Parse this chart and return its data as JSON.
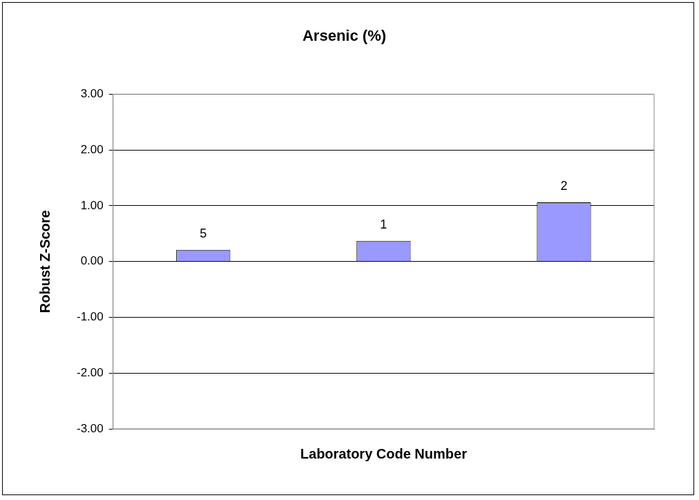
{
  "chart_data": {
    "type": "bar",
    "title": "Arsenic (%)",
    "xlabel": "Laboratory Code Number",
    "ylabel": "Robust Z-Score",
    "categories": [
      "5",
      "1",
      "2"
    ],
    "values": [
      0.21,
      0.37,
      1.06
    ],
    "color": "#9999ff",
    "ylim": [
      -3,
      3
    ],
    "yticks": [
      {
        "value": -3,
        "label": "-3.00"
      },
      {
        "value": -2,
        "label": "-2.00"
      },
      {
        "value": -1,
        "label": "-1.00"
      },
      {
        "value": 0,
        "label": "0.00"
      },
      {
        "value": 1,
        "label": "1.00"
      },
      {
        "value": 2,
        "label": "2.00"
      },
      {
        "value": 3,
        "label": "3.00"
      }
    ],
    "grid": "y"
  }
}
